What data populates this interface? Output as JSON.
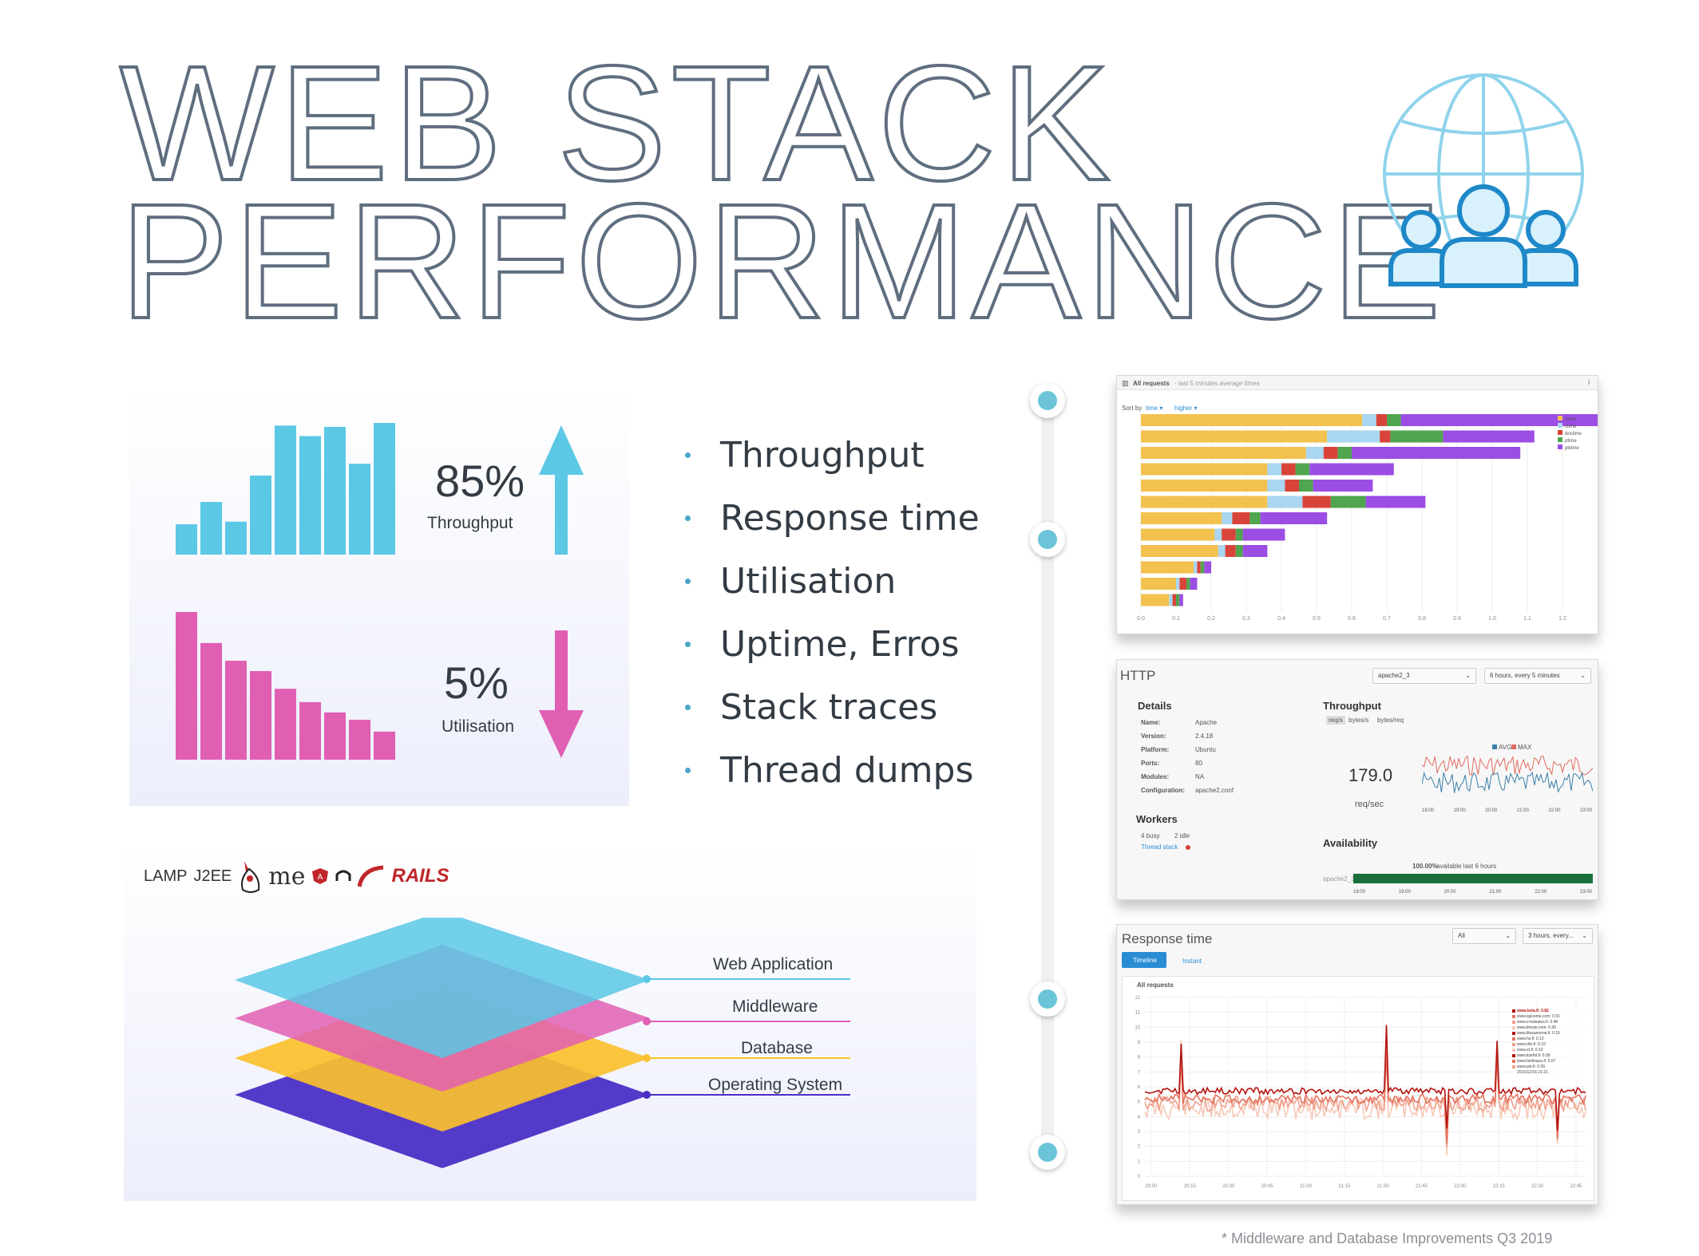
{
  "title": {
    "line1": "WEB STACK",
    "line2": "PERFORMANCE"
  },
  "kpis": {
    "throughput": {
      "value": "85%",
      "label": "Throughput",
      "direction": "up",
      "color": "#5bc8e5",
      "bars": [
        0.23,
        0.4,
        0.25,
        0.6,
        0.98,
        0.9,
        0.97,
        0.69,
        1.0
      ]
    },
    "utilisation": {
      "value": "5%",
      "label": "Utilisation",
      "direction": "down",
      "color": "#e05fb3",
      "bars": [
        1.0,
        0.79,
        0.67,
        0.6,
        0.48,
        0.39,
        0.32,
        0.27,
        0.19
      ]
    }
  },
  "bullets": [
    "Throughput",
    "Response time",
    "Utilisation",
    "Uptime, Erros",
    "Stack traces",
    "Thread dumps"
  ],
  "tech_logos": {
    "lamp": "LAMP",
    "j2ee": "J2EE",
    "mean": "me",
    "rails": "RAILS"
  },
  "layers": [
    {
      "label": "Web Application",
      "color": "#5bc8e5"
    },
    {
      "label": "Middleware",
      "color": "#e05fb3"
    },
    {
      "label": "Database",
      "color": "#fbc02d"
    },
    {
      "label": "Operating System",
      "color": "#4b2fc6"
    }
  ],
  "screens": {
    "requests": {
      "header": "All requests",
      "header_sub": "- last 5 minutes average times",
      "sort_by": "Sort by",
      "sort_field": "time ▾",
      "sort_order": "higher ▾",
      "legend": [
        "rtime",
        "ctime",
        "dnstime",
        "ptime",
        "pktime"
      ],
      "legend_colors": [
        "#f2c14e",
        "#a9d6f0",
        "#d9443a",
        "#4fa64f",
        "#9b4de4"
      ],
      "x_ticks": [
        "0.0",
        "0.1",
        "0.2",
        "0.3",
        "0.4",
        "0.5",
        "0.6",
        "0.7",
        "0.8",
        "0.9",
        "1.0",
        "1.1",
        "1.2"
      ],
      "rows": [
        [
          0.63,
          0.04,
          0.03,
          0.04,
          0.57
        ],
        [
          0.53,
          0.15,
          0.03,
          0.15,
          0.26
        ],
        [
          0.47,
          0.05,
          0.04,
          0.04,
          0.48
        ],
        [
          0.36,
          0.04,
          0.04,
          0.04,
          0.24
        ],
        [
          0.36,
          0.05,
          0.04,
          0.04,
          0.17
        ],
        [
          0.36,
          0.1,
          0.08,
          0.1,
          0.17
        ],
        [
          0.23,
          0.03,
          0.05,
          0.03,
          0.19
        ],
        [
          0.21,
          0.02,
          0.04,
          0.02,
          0.12
        ],
        [
          0.22,
          0.02,
          0.03,
          0.02,
          0.07
        ],
        [
          0.15,
          0.01,
          0.01,
          0.01,
          0.02
        ],
        [
          0.1,
          0.01,
          0.02,
          0.01,
          0.02
        ],
        [
          0.08,
          0.01,
          0.01,
          0.01,
          0.01
        ]
      ]
    },
    "http": {
      "title": "HTTP",
      "server_select": "apache2_3",
      "range_select": "6 hours, every 5 minutes",
      "details_title": "Details",
      "details": [
        {
          "k": "Name:",
          "v": "Apache"
        },
        {
          "k": "Version:",
          "v": "2.4.18"
        },
        {
          "k": "Platform:",
          "v": "Ubuntu"
        },
        {
          "k": "Ports:",
          "v": "80"
        },
        {
          "k": "Modules:",
          "v": "NA"
        },
        {
          "k": "Configuration:",
          "v": "apache2.conf"
        }
      ],
      "workers_title": "Workers",
      "busy": "4 busy",
      "idle": "2 idle",
      "thread_stack": "Thread stack",
      "throughput_title": "Throughput",
      "units": [
        "req/s",
        "bytes/s",
        "bytes/req"
      ],
      "throughput_value": "179.0",
      "throughput_unit": "req/sec",
      "legend": [
        "AVG",
        "MAX"
      ],
      "time_ticks": [
        "18:00",
        "19:00",
        "20:00",
        "21:00",
        "22:00",
        "23:00"
      ],
      "availability_title": "Availability",
      "availability_value": "100.00%",
      "availability_text": "available last 6 hours",
      "availability_host": "apache2_3"
    },
    "response": {
      "title": "Response time",
      "filter_select": "All",
      "range_select": "3 hours, every...",
      "tab_timeline": "Timeline",
      "tab_instant": "Instant",
      "panel_header": "All requests",
      "legend": [
        "www.kela.fi: 0.82",
        "www.spiceme.com: 0.51",
        "www.e-kalsatus.fi: 0.48",
        "www.tinnan.com: 0.36",
        "www.iltasanomat.fi: 0.15",
        "www.hs.fi: 0.12",
        "www.divi.fi: 0.10",
        "www.et.fi: 0.10",
        "www.itsehti.fi: 0.09",
        "www.hellmaus.fi: 0.07",
        "www.pie.fi: 0.06",
        "2016/12/16 21:21"
      ],
      "y_ticks": [
        "12",
        "11",
        "10",
        "9",
        "8",
        "7",
        "6",
        "5",
        "4",
        "3",
        "2",
        "1",
        "0"
      ],
      "x_ticks": [
        "20:00",
        "20:15",
        "20:30",
        "20:45",
        "21:00",
        "21:15",
        "21:30",
        "21:45",
        "22:00",
        "22:15",
        "22:30",
        "22:45"
      ]
    }
  },
  "footnote": "* Middleware and Database Improvements Q3 2019"
}
